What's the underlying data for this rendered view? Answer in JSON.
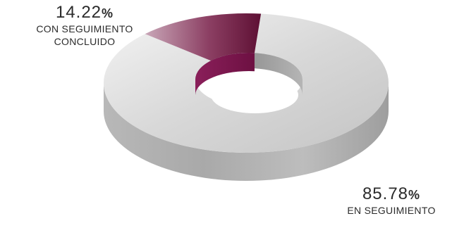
{
  "chart_data": {
    "type": "pie",
    "style": "3d-donut",
    "categories": [
      "EN SEGUIMIENTO",
      "CON SEGUIMIENTO CONCLUIDO"
    ],
    "values": [
      85.78,
      14.22
    ],
    "unit": "%",
    "colors": [
      "#c9c9c9",
      "#7a1e4a"
    ],
    "labels": [
      {
        "value": "85.78",
        "sign": "%",
        "lines": [
          "EN SEGUIMIENTO"
        ]
      },
      {
        "value": "14.22",
        "sign": "%",
        "lines": [
          "CON SEGUIMIENTO",
          "CONCLUIDO"
        ]
      }
    ]
  }
}
